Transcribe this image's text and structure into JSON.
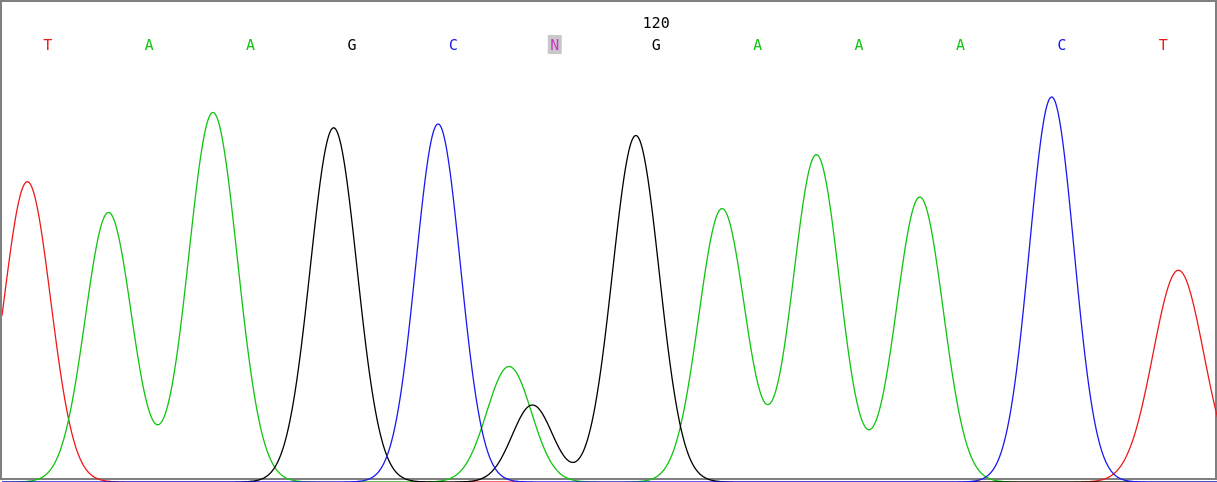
{
  "colors": {
    "A": "#11c411",
    "C": "#1a1aee",
    "G": "#000000",
    "T": "#ee1a1a",
    "N": "#cc33cc",
    "N_highlight": "#c8c8c8"
  },
  "chart_data": {
    "type": "line",
    "title": "",
    "xlabel": "",
    "ylabel": "",
    "position_labels": [
      {
        "label": "120",
        "at_base_index": 6
      }
    ],
    "bases": [
      {
        "call": "T",
        "color_key": "T"
      },
      {
        "call": "A",
        "color_key": "A"
      },
      {
        "call": "A",
        "color_key": "A"
      },
      {
        "call": "G",
        "color_key": "G"
      },
      {
        "call": "C",
        "color_key": "C"
      },
      {
        "call": "N",
        "color_key": "N",
        "highlighted": true
      },
      {
        "call": "G",
        "color_key": "G"
      },
      {
        "call": "A",
        "color_key": "A"
      },
      {
        "call": "A",
        "color_key": "A"
      },
      {
        "call": "A",
        "color_key": "A"
      },
      {
        "call": "C",
        "color_key": "C"
      },
      {
        "call": "T",
        "color_key": "T"
      }
    ],
    "xlim": [
      0,
      12
    ],
    "ylim": [
      0,
      100
    ],
    "traces": [
      {
        "channel": "T",
        "peaks": [
          {
            "x": 0.25,
            "h": 78,
            "w": 0.23
          },
          {
            "x": 11.6,
            "h": 55,
            "w": 0.25
          }
        ]
      },
      {
        "channel": "A",
        "peaks": [
          {
            "x": 1.05,
            "h": 70,
            "w": 0.23
          },
          {
            "x": 2.08,
            "h": 96,
            "w": 0.24
          },
          {
            "x": 5.0,
            "h": 30,
            "w": 0.22
          },
          {
            "x": 7.1,
            "h": 71,
            "w": 0.23
          },
          {
            "x": 8.03,
            "h": 85,
            "w": 0.23
          },
          {
            "x": 9.05,
            "h": 74,
            "w": 0.23
          }
        ]
      },
      {
        "channel": "G",
        "peaks": [
          {
            "x": 3.27,
            "h": 92,
            "w": 0.23
          },
          {
            "x": 5.23,
            "h": 20,
            "w": 0.2
          },
          {
            "x": 6.25,
            "h": 90,
            "w": 0.23
          }
        ]
      },
      {
        "channel": "C",
        "peaks": [
          {
            "x": 4.3,
            "h": 93,
            "w": 0.22
          },
          {
            "x": 10.35,
            "h": 100,
            "w": 0.22
          }
        ]
      }
    ]
  }
}
